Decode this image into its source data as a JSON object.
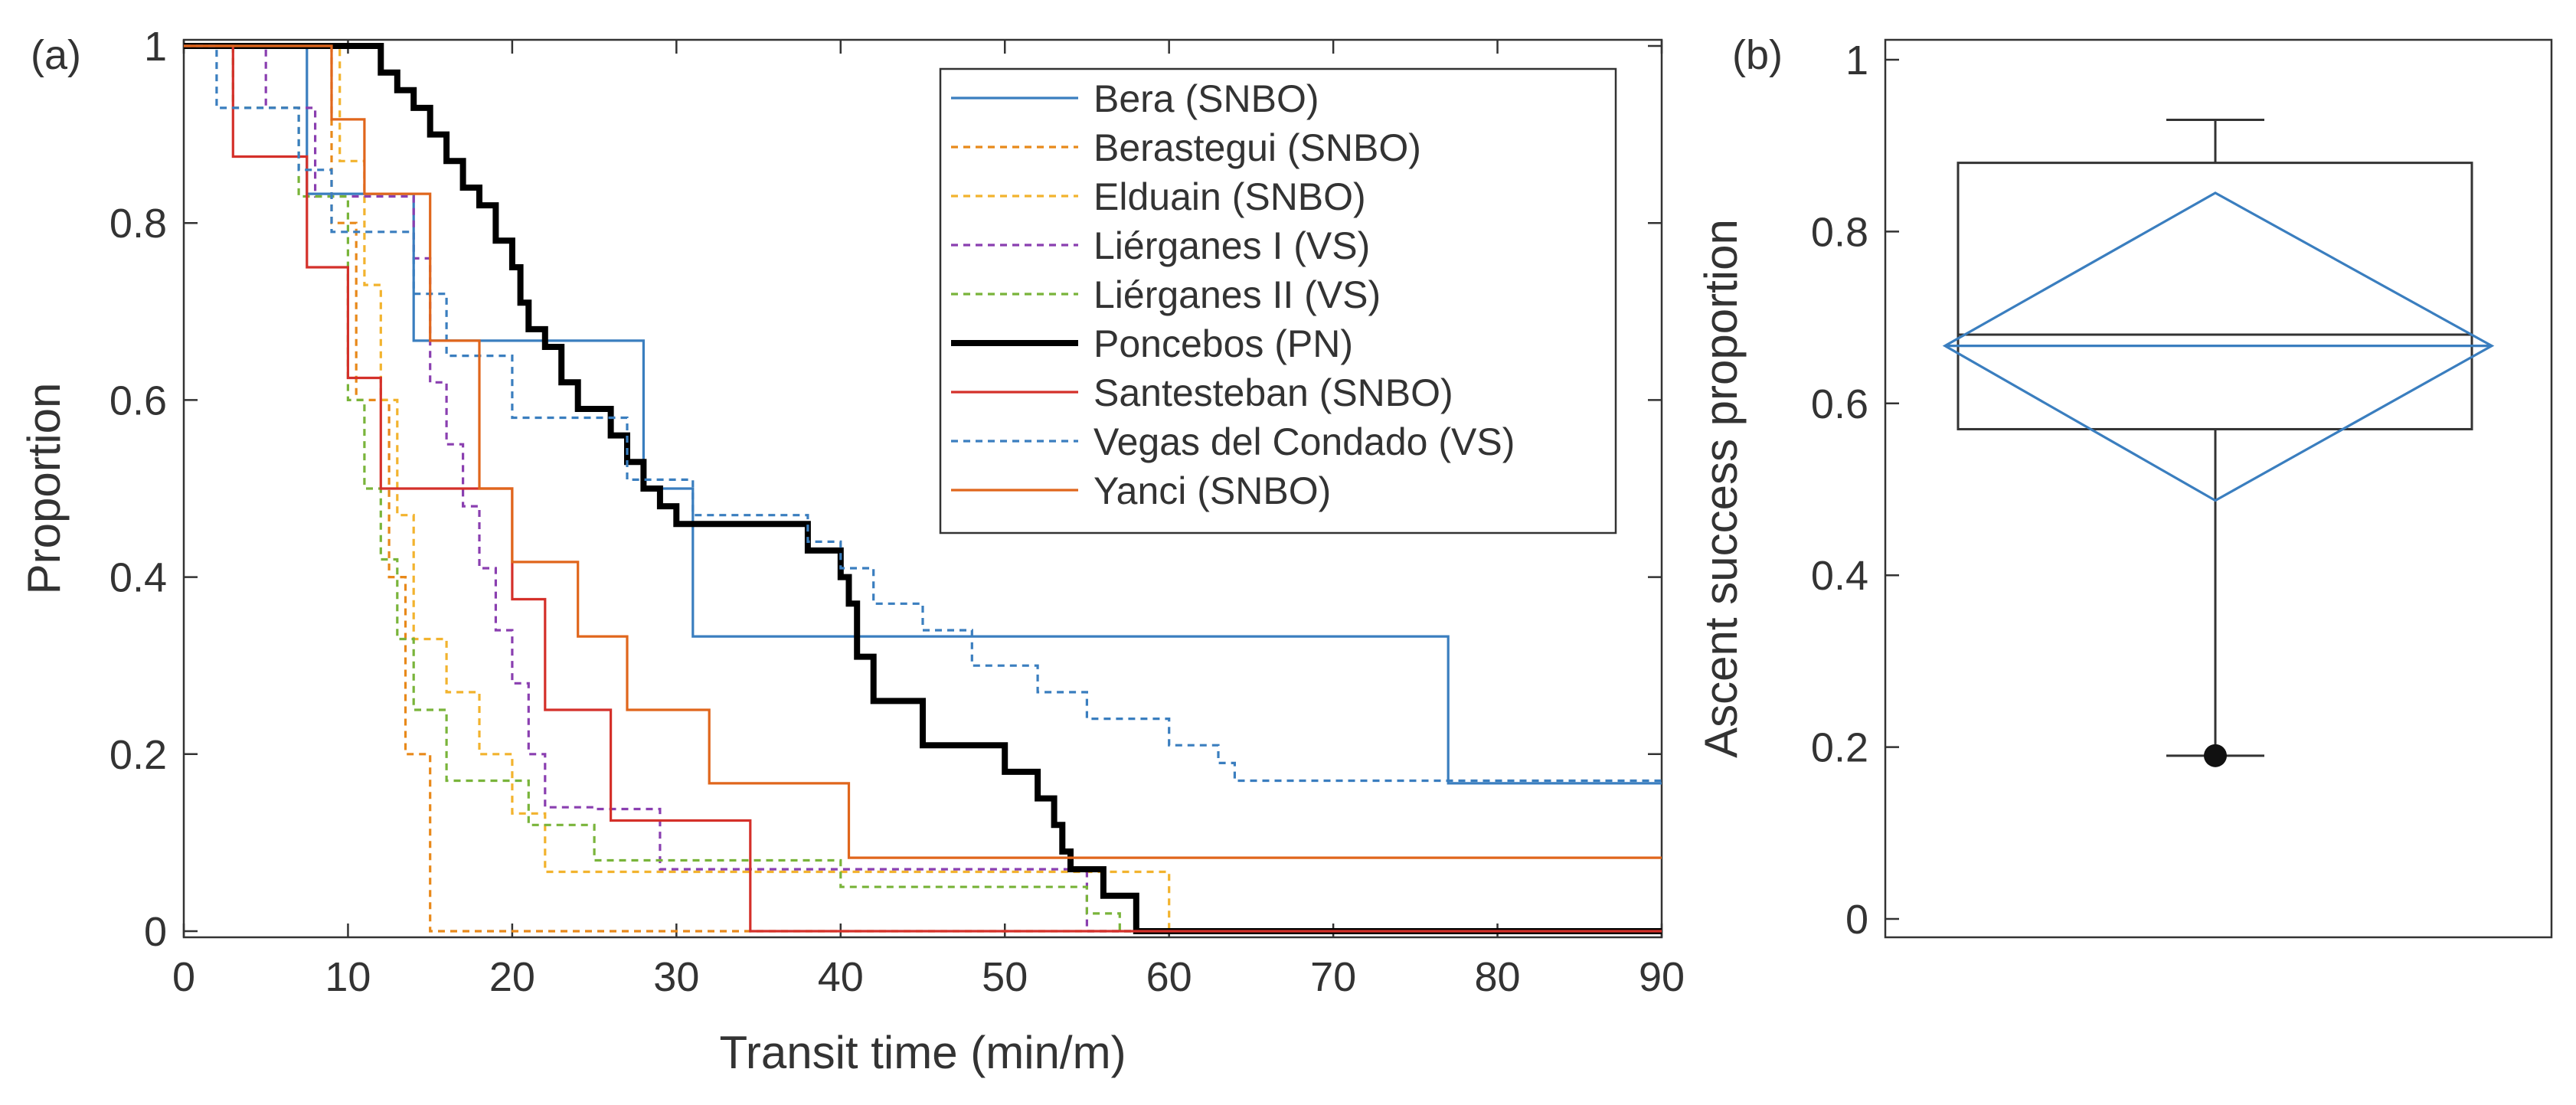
{
  "chart_data": [
    {
      "panel": "(a)",
      "type": "line",
      "subtype": "step",
      "xlabel": "Transit time (min/m)",
      "ylabel": "Proportion",
      "xlim": [
        0,
        90
      ],
      "ylim": [
        0,
        1
      ],
      "xticks": [
        "0",
        "10",
        "20",
        "30",
        "40",
        "50",
        "60",
        "70",
        "80",
        "90"
      ],
      "yticks": [
        "0",
        "0.2",
        "0.4",
        "0.6",
        "0.8",
        "1"
      ],
      "legend_position": "top-right",
      "series": [
        {
          "name": "Bera (SNBO)",
          "color": "#3a7ebf",
          "dash": "solid",
          "width": "thin",
          "x": [
            0,
            7.5,
            14,
            28,
            31,
            77,
            90
          ],
          "y": [
            1,
            0.833,
            0.667,
            0.5,
            0.333,
            0.167,
            0.167
          ]
        },
        {
          "name": "Berastegui (SNBO)",
          "color": "#e8891a",
          "dash": "dotted",
          "width": "thin",
          "x": [
            0,
            9,
            10.5,
            12.5,
            13.5,
            15,
            90
          ],
          "y": [
            1,
            0.8,
            0.6,
            0.4,
            0.2,
            0,
            0
          ]
        },
        {
          "name": "Elduain (SNBO)",
          "color": "#f2b32e",
          "dash": "dotted",
          "width": "thin",
          "x": [
            0,
            9.5,
            11,
            12,
            13,
            14,
            16,
            18,
            20,
            22,
            25,
            60,
            90
          ],
          "y": [
            1,
            0.87,
            0.73,
            0.6,
            0.47,
            0.33,
            0.27,
            0.2,
            0.133,
            0.067,
            0.067,
            0,
            0
          ]
        },
        {
          "name": "Liérganes I (VS)",
          "color": "#8a3fb0",
          "dash": "dotted",
          "width": "thin",
          "x": [
            0,
            5,
            8,
            14,
            15,
            16,
            17,
            18,
            19,
            20,
            21,
            22,
            25,
            29,
            50,
            55,
            90
          ],
          "y": [
            1,
            0.93,
            0.83,
            0.76,
            0.62,
            0.55,
            0.48,
            0.41,
            0.34,
            0.28,
            0.2,
            0.14,
            0.138,
            0.07,
            0.07,
            0,
            0
          ]
        },
        {
          "name": "Liérganes II (VS)",
          "color": "#79b43a",
          "dash": "dotted",
          "width": "thin",
          "x": [
            0,
            3,
            7,
            10,
            11,
            12,
            13,
            14,
            16,
            21,
            25,
            40,
            55,
            57,
            90
          ],
          "y": [
            1,
            0.93,
            0.83,
            0.6,
            0.5,
            0.42,
            0.33,
            0.25,
            0.17,
            0.12,
            0.08,
            0.05,
            0.02,
            0,
            0
          ]
        },
        {
          "name": "Poncebos (PN)",
          "color": "#000000",
          "dash": "solid",
          "width": "thick",
          "x": [
            0,
            12,
            13,
            14,
            15,
            16,
            17,
            18,
            19,
            20,
            20.5,
            21,
            22,
            23,
            24,
            26,
            27,
            28,
            29,
            30,
            38,
            40,
            40.5,
            41,
            42,
            45,
            50,
            52,
            53,
            53.5,
            54,
            56,
            58,
            90
          ],
          "y": [
            1,
            0.97,
            0.95,
            0.93,
            0.9,
            0.87,
            0.84,
            0.82,
            0.78,
            0.75,
            0.71,
            0.68,
            0.66,
            0.62,
            0.59,
            0.56,
            0.53,
            0.5,
            0.48,
            0.46,
            0.43,
            0.4,
            0.37,
            0.31,
            0.26,
            0.21,
            0.18,
            0.15,
            0.12,
            0.09,
            0.07,
            0.04,
            0,
            0
          ]
        },
        {
          "name": "Santesteban (SNBO)",
          "color": "#d4302a",
          "dash": "solid",
          "width": "thin",
          "x": [
            0,
            3,
            7.5,
            10,
            12,
            20,
            22,
            26,
            34.5,
            90
          ],
          "y": [
            1,
            0.875,
            0.75,
            0.625,
            0.5,
            0.375,
            0.25,
            0.125,
            0,
            0
          ]
        },
        {
          "name": "Vegas del Condado (VS)",
          "color": "#3a7ebf",
          "dash": "dotted",
          "width": "thin",
          "x": [
            0,
            2,
            7,
            9,
            14,
            16,
            20,
            27,
            31,
            38,
            40,
            42,
            45,
            48,
            52,
            55,
            60,
            63,
            64,
            90
          ],
          "y": [
            1,
            0.93,
            0.86,
            0.79,
            0.72,
            0.65,
            0.58,
            0.51,
            0.47,
            0.44,
            0.41,
            0.37,
            0.34,
            0.3,
            0.27,
            0.24,
            0.21,
            0.19,
            0.17,
            0.17
          ]
        },
        {
          "name": "Yanci (SNBO)",
          "color": "#e0661c",
          "dash": "solid",
          "width": "thin",
          "x": [
            0,
            9,
            11,
            15,
            18,
            20,
            24,
            27,
            32,
            40.5,
            90
          ],
          "y": [
            1,
            0.917,
            0.833,
            0.667,
            0.5,
            0.417,
            0.333,
            0.25,
            0.167,
            0.083,
            0.083
          ]
        }
      ]
    },
    {
      "panel": "(b)",
      "type": "box",
      "ylabel": "Ascent success proportion",
      "ylim": [
        0,
        1
      ],
      "yticks": [
        "0",
        "0.2",
        "0.4",
        "0.6",
        "0.8",
        "1"
      ],
      "box": {
        "q1": 0.57,
        "median": 0.68,
        "q3": 0.88,
        "whisker_low": 0.19,
        "whisker_high": 0.93,
        "outlier": 0.19
      },
      "mean_diamond": {
        "mean": 0.667,
        "upper": 0.845,
        "lower": 0.487
      },
      "box_color": "#333333",
      "diamond_color": "#3a7ebf"
    }
  ]
}
